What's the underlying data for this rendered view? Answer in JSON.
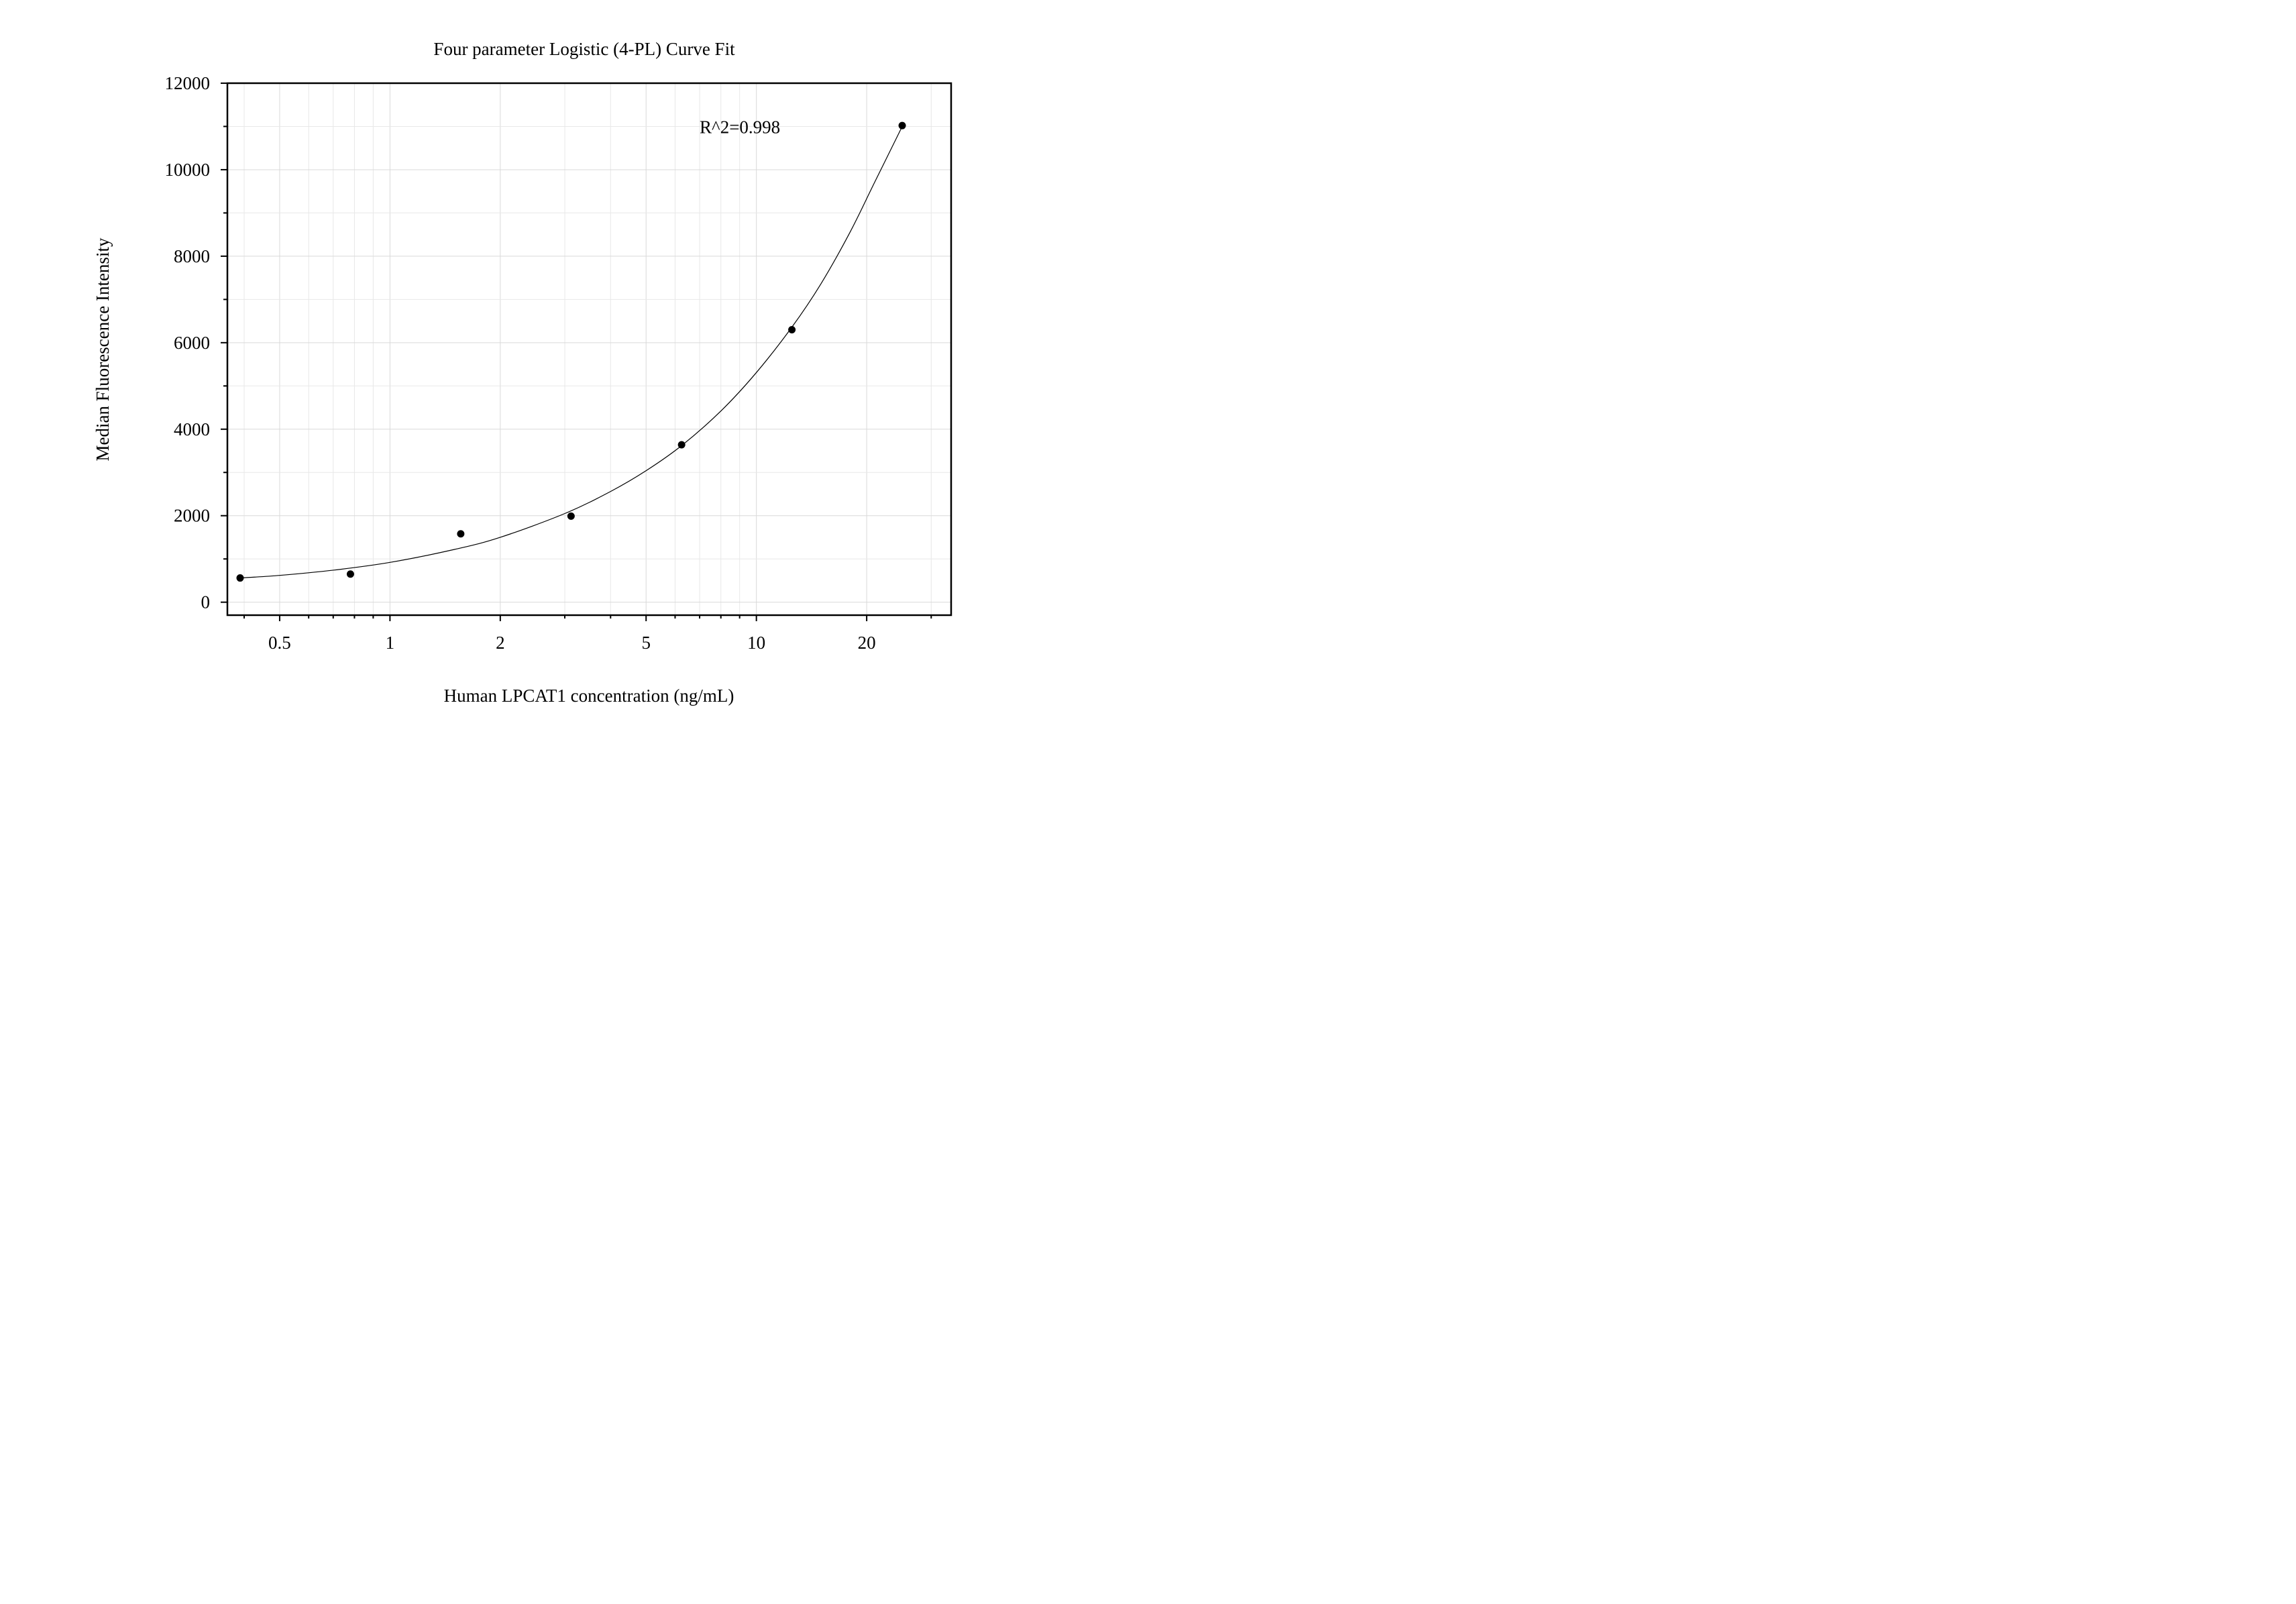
{
  "chart_data": {
    "type": "scatter",
    "title": "Four parameter Logistic (4-PL) Curve Fit",
    "xlabel": "Human LPCAT1 concentration (ng/mL)",
    "ylabel": "Median Fluorescence Intensity",
    "x_scale": "log",
    "xlim": [
      0.36,
      34
    ],
    "ylim": [
      -300,
      12000
    ],
    "x_ticks": [
      0.5,
      1,
      2,
      5,
      10,
      20
    ],
    "x_tick_labels": [
      "0.5",
      "1",
      "2",
      "5",
      "10",
      "20"
    ],
    "y_ticks": [
      0,
      2000,
      4000,
      6000,
      8000,
      10000,
      12000
    ],
    "y_tick_labels": [
      "0",
      "2000",
      "4000",
      "6000",
      "8000",
      "10000",
      "12000"
    ],
    "grid": true,
    "series": [
      {
        "x": [
          0.39,
          0.78,
          1.56,
          3.12,
          6.25,
          12.5,
          25
        ],
        "y": [
          560,
          650,
          1580,
          1990,
          3640,
          6300,
          11020
        ],
        "marker": "circle",
        "color": "#000000"
      }
    ],
    "fit_curve": {
      "model": "4-PL",
      "x": [
        0.39,
        0.5,
        0.7,
        1,
        1.5,
        2,
        3,
        4,
        5,
        6.25,
        8,
        10,
        12.5,
        15,
        18,
        21,
        25
      ],
      "y": [
        560,
        620,
        740,
        920,
        1220,
        1500,
        2050,
        2560,
        3040,
        3620,
        4420,
        5310,
        6360,
        7360,
        8550,
        9700,
        11000
      ]
    },
    "annotations": [
      {
        "text": "R^2=0.998",
        "x": 7,
        "y": 11000
      }
    ]
  }
}
